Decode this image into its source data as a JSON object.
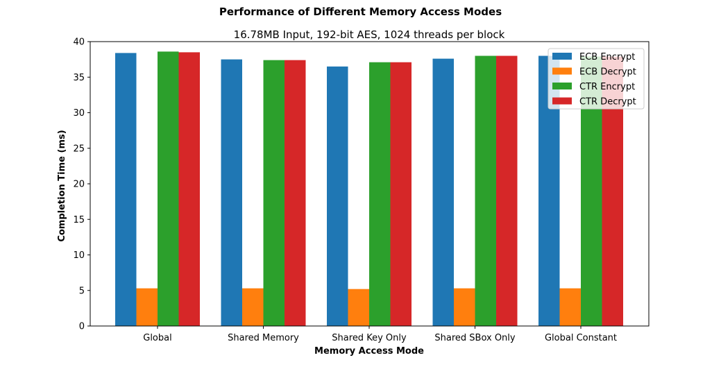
{
  "chart_data": {
    "type": "bar",
    "suptitle": "Performance of Different Memory Access Modes",
    "title": "16.78MB Input, 192-bit AES, 1024 threads per block",
    "xlabel": "Memory Access Mode",
    "ylabel": "Completion Time (ms)",
    "ylim": [
      0,
      40
    ],
    "yticks": [
      0,
      5,
      10,
      15,
      20,
      25,
      30,
      35,
      40
    ],
    "categories": [
      "Global",
      "Shared Memory",
      "Shared Key Only",
      "Shared SBox Only",
      "Global Constant"
    ],
    "series": [
      {
        "name": "ECB Encrypt",
        "color": "#1f77b4",
        "values": [
          38.4,
          37.5,
          36.5,
          37.6,
          38.0
        ]
      },
      {
        "name": "ECB Decrypt",
        "color": "#ff7f0e",
        "values": [
          5.3,
          5.3,
          5.2,
          5.3,
          5.3
        ]
      },
      {
        "name": "CTR Encrypt",
        "color": "#2ca02c",
        "values": [
          38.6,
          37.4,
          37.1,
          38.0,
          37.9
        ]
      },
      {
        "name": "CTR Decrypt",
        "color": "#d62728",
        "values": [
          38.5,
          37.4,
          37.1,
          38.0,
          37.9
        ]
      }
    ],
    "legend": "top-right",
    "grid": false
  }
}
